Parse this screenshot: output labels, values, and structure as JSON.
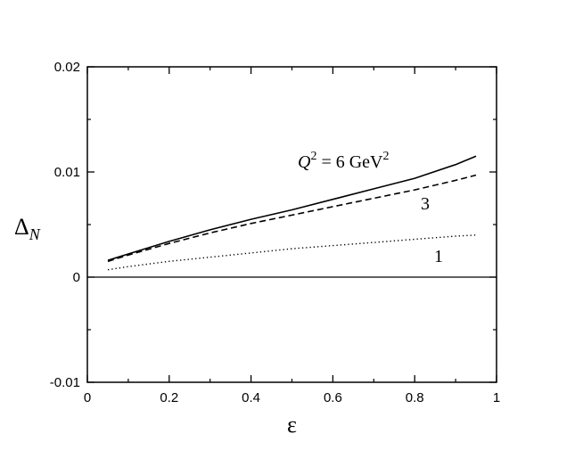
{
  "chart_data": {
    "type": "line",
    "xlabel": "ε",
    "ylabel": {
      "base": "Δ",
      "sub": "N"
    },
    "xlim": [
      0,
      1
    ],
    "ylim": [
      -0.01,
      0.02
    ],
    "x_ticks": [
      0,
      0.2,
      0.4,
      0.6,
      0.8,
      1
    ],
    "x_tick_labels": [
      "0",
      "0.2",
      "0.4",
      "0.6",
      "0.8",
      "1"
    ],
    "y_ticks": [
      -0.01,
      0,
      0.01,
      0.02
    ],
    "y_tick_labels": [
      "-0.01",
      "0",
      "0.01",
      "0.02"
    ],
    "grid": false,
    "legend": "none",
    "series": [
      {
        "name": "Q² = 6 GeV²",
        "style": "solid",
        "color": "#000000",
        "x": [
          0.05,
          0.1,
          0.2,
          0.3,
          0.4,
          0.5,
          0.6,
          0.7,
          0.8,
          0.9,
          0.95
        ],
        "y": [
          0.0016,
          0.0022,
          0.0034,
          0.0045,
          0.0055,
          0.0064,
          0.0074,
          0.0084,
          0.0094,
          0.0107,
          0.0115
        ]
      },
      {
        "name": "3",
        "style": "dashed",
        "color": "#000000",
        "x": [
          0.05,
          0.1,
          0.2,
          0.3,
          0.4,
          0.5,
          0.6,
          0.7,
          0.8,
          0.9,
          0.95
        ],
        "y": [
          0.0015,
          0.0021,
          0.0032,
          0.0042,
          0.0051,
          0.0059,
          0.0067,
          0.0075,
          0.0083,
          0.0092,
          0.0097
        ]
      },
      {
        "name": "1",
        "style": "dotted",
        "color": "#000000",
        "x": [
          0.05,
          0.1,
          0.2,
          0.3,
          0.4,
          0.5,
          0.6,
          0.7,
          0.8,
          0.9,
          0.95
        ],
        "y": [
          0.0007,
          0.001,
          0.0015,
          0.0019,
          0.0023,
          0.0027,
          0.003,
          0.0033,
          0.0036,
          0.0039,
          0.004
        ]
      }
    ],
    "reference_line": {
      "y": 0,
      "style": "solid"
    },
    "annotations": [
      {
        "series": "Q² = 6 GeV²",
        "parts": {
          "q": "Q",
          "qexp": "2",
          "eq": " = 6 GeV",
          "unitexp": "2"
        }
      },
      {
        "series": "3",
        "text": "3"
      },
      {
        "series": "1",
        "text": "1"
      }
    ]
  }
}
